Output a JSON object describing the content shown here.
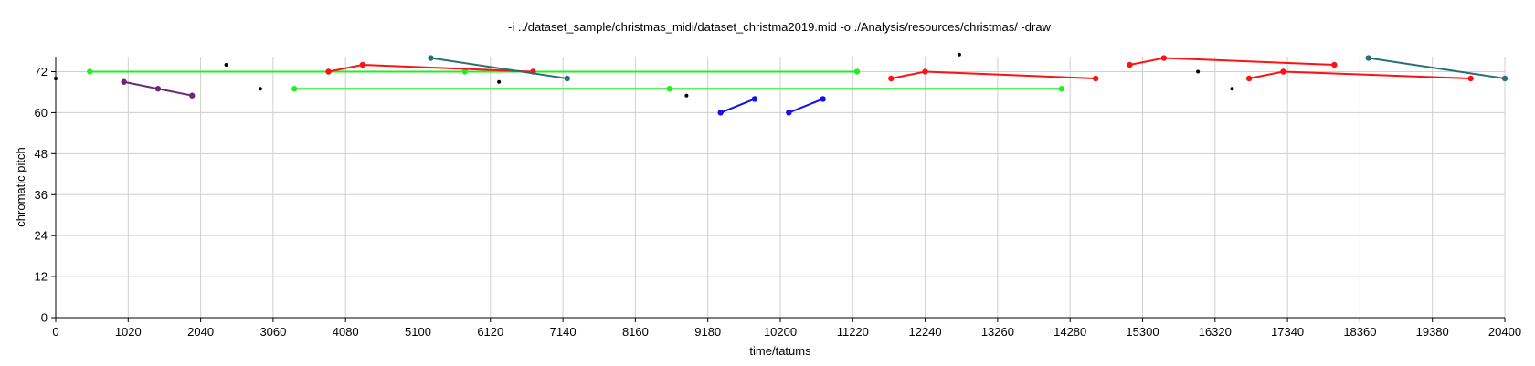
{
  "chart_data": {
    "type": "line",
    "title": "-i ../dataset_sample/christmas_midi/dataset_christma2019.mid -o ./Analysis/resources/christmas/ -draw",
    "xlabel": "time/tatums",
    "ylabel": "chromatic pitch",
    "xlim": [
      0,
      20400
    ],
    "ylim": [
      0,
      76
    ],
    "xticks": [
      0,
      1020,
      2040,
      3060,
      4080,
      5100,
      6120,
      7140,
      8160,
      9180,
      10200,
      11220,
      12240,
      13260,
      14280,
      15300,
      16320,
      17340,
      18360,
      19380,
      20400
    ],
    "yticks": [
      0,
      12,
      24,
      36,
      48,
      60,
      72
    ],
    "grid": true,
    "colors": {
      "green": "#22ee22",
      "red": "#ff1111",
      "blue": "#1111ee",
      "teal": "#2a7070",
      "purple": "#6a2a7a",
      "black": "#000000"
    },
    "series": [
      {
        "color": "green",
        "points": [
          [
            480,
            72
          ],
          [
            11280,
            72
          ]
        ]
      },
      {
        "color": "green",
        "points": [
          [
            3360,
            67
          ],
          [
            14160,
            67
          ]
        ]
      },
      {
        "color": "green",
        "points": [
          [
            5760,
            72
          ]
        ]
      },
      {
        "color": "green",
        "points": [
          [
            8640,
            67
          ]
        ]
      },
      {
        "color": "purple",
        "points": [
          [
            960,
            69
          ],
          [
            1440,
            67
          ],
          [
            1920,
            65
          ]
        ]
      },
      {
        "color": "red",
        "points": [
          [
            3840,
            72
          ],
          [
            4320,
            74
          ],
          [
            6720,
            72
          ]
        ]
      },
      {
        "color": "teal",
        "points": [
          [
            5280,
            76
          ],
          [
            7200,
            70
          ]
        ]
      },
      {
        "color": "blue",
        "points": [
          [
            9360,
            60
          ],
          [
            9840,
            64
          ]
        ]
      },
      {
        "color": "blue",
        "points": [
          [
            10320,
            60
          ],
          [
            10800,
            64
          ]
        ]
      },
      {
        "color": "red",
        "points": [
          [
            11760,
            70
          ],
          [
            12240,
            72
          ],
          [
            14640,
            70
          ]
        ]
      },
      {
        "color": "red",
        "points": [
          [
            15120,
            74
          ],
          [
            15600,
            76
          ],
          [
            17999,
            74
          ]
        ]
      },
      {
        "color": "red",
        "points": [
          [
            16800,
            70
          ],
          [
            17280,
            72
          ],
          [
            19920,
            70
          ]
        ]
      },
      {
        "color": "teal",
        "points": [
          [
            18480,
            76
          ],
          [
            20400,
            70
          ]
        ]
      },
      {
        "color": "black",
        "points": [
          [
            0,
            70
          ],
          [
            2400,
            74
          ],
          [
            2880,
            67
          ],
          [
            6240,
            69
          ],
          [
            8880,
            65
          ],
          [
            12720,
            77
          ],
          [
            16080,
            72
          ],
          [
            16560,
            67
          ]
        ]
      }
    ]
  }
}
